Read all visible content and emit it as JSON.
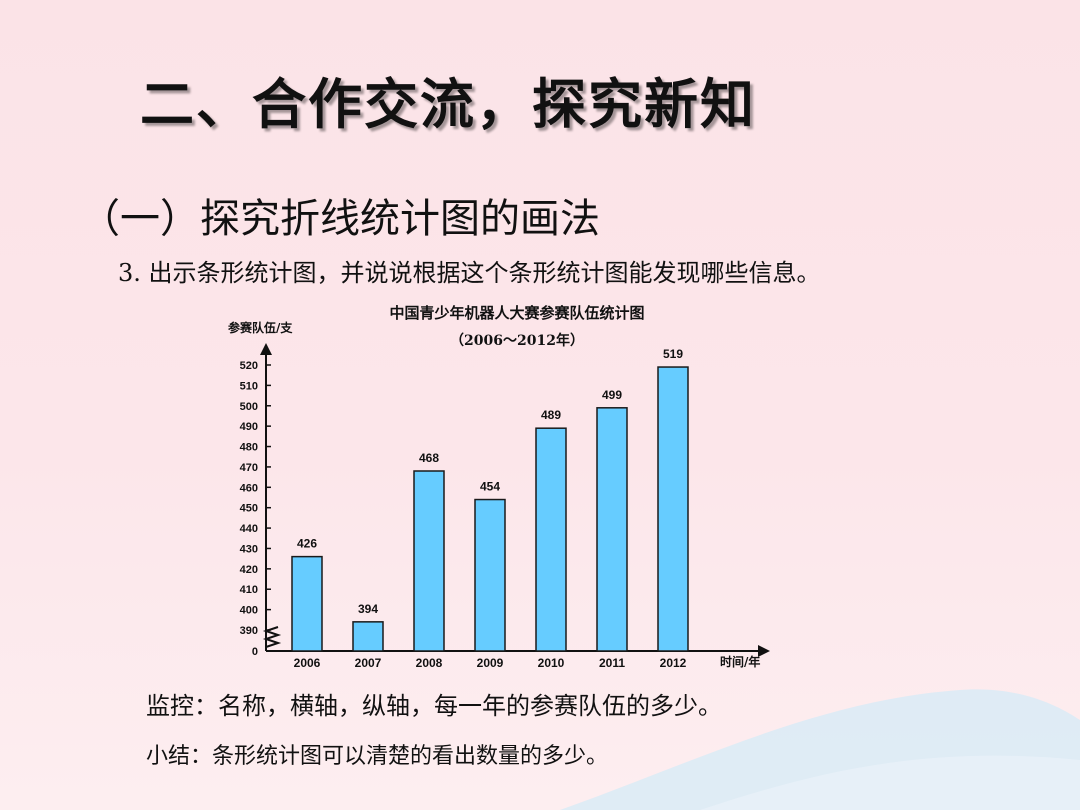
{
  "slide": {
    "title": "二、合作交流，探究新知",
    "subtitle": "（一）探究折线统计图的画法",
    "step": "3. 出示条形统计图，并说说根据这个条形统计图能发现哪些信息。",
    "note_observe": "监控：名称，横轴，纵轴，每一年的参赛队伍的多少。",
    "note_summary": "小结：条形统计图可以清楚的看出数量的多少。"
  },
  "colors": {
    "bar_fill": "#66ccff",
    "bar_stroke": "#1a1a1a",
    "background": "#fce6ea",
    "wave": "#dcebf5"
  },
  "chart_data": {
    "type": "bar",
    "title": "中国青少年机器人大赛参赛队伍统计图",
    "subtitle": "（2006～2012年）",
    "ylabel": "参赛队伍/支",
    "xlabel": "时间/年",
    "categories": [
      "2006",
      "2007",
      "2008",
      "2009",
      "2010",
      "2011",
      "2012"
    ],
    "values": [
      426,
      394,
      468,
      454,
      489,
      499,
      519
    ],
    "y_ticks": [
      "520",
      "510",
      "500",
      "490",
      "480",
      "470",
      "460",
      "450",
      "440",
      "430",
      "420",
      "410",
      "400",
      "390",
      "0"
    ],
    "ylim": [
      385,
      520
    ],
    "axis_break": true,
    "grid": false
  }
}
